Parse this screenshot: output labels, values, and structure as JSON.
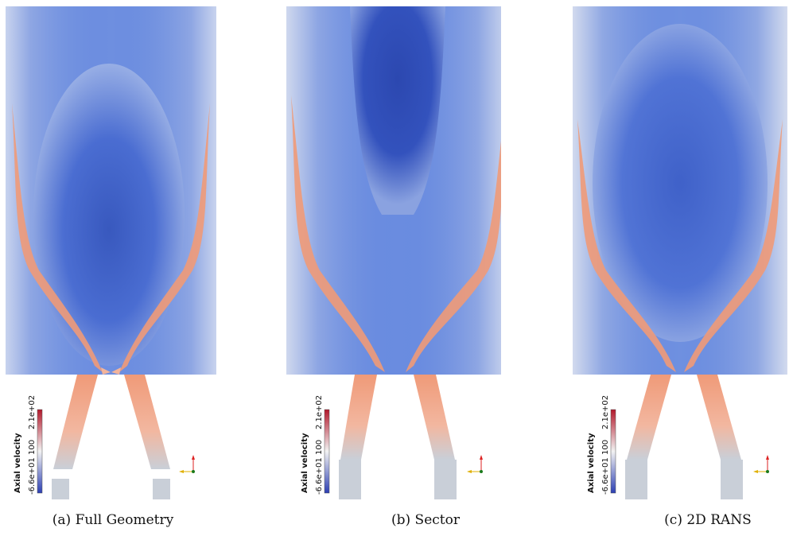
{
  "panels": [
    {
      "caption": "(a) Full Geometry",
      "colorbar": {
        "title": "Axial velocity",
        "max_label": "2.1e+02",
        "mid_label": "100",
        "min_label": "-6.6e+01"
      }
    },
    {
      "caption": "(b) Sector",
      "colorbar": {
        "title": "Axial velocity",
        "max_label": "2.1e+02",
        "mid_label": "100",
        "min_label": "-6.6e+01"
      }
    },
    {
      "caption": "(c) 2D RANS",
      "colorbar": {
        "title": "Axial velocity",
        "max_label": "2.1e+02",
        "mid_label": "100",
        "min_label": "-6.6e+01"
      }
    }
  ],
  "colors": {
    "jet": "#f09a78",
    "jet_core": "#f2a286",
    "field_blue": "#5f84de",
    "deep_blue": "#2f4fb8",
    "wall_gray": "#c9cfd8",
    "colorbar_top": "#b2182b",
    "colorbar_mid": "#f2f2f2",
    "colorbar_bottom": "#2c3fb3"
  }
}
